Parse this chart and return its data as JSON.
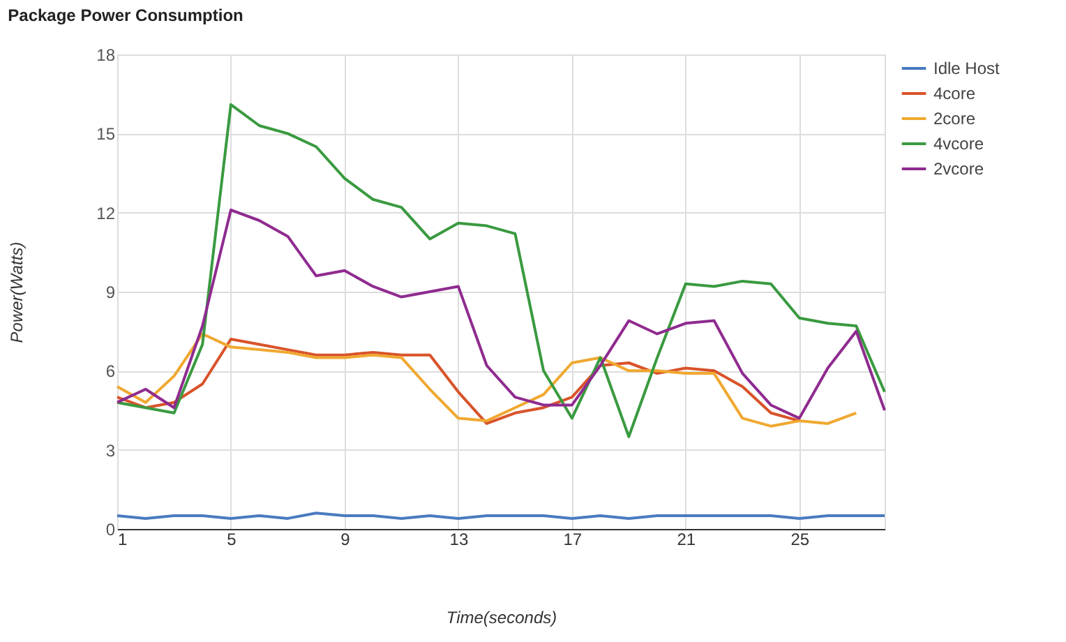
{
  "chart_data": {
    "type": "line",
    "title": "Package Power Consumption",
    "xlabel": "Time(seconds)",
    "ylabel": "Power(Watts)",
    "x": [
      1,
      2,
      3,
      4,
      5,
      6,
      7,
      8,
      9,
      10,
      11,
      12,
      13,
      14,
      15,
      16,
      17,
      18,
      19,
      20,
      21,
      22,
      23,
      24,
      25,
      26,
      27,
      28
    ],
    "xlim": [
      1,
      28
    ],
    "xticks": [
      1,
      5,
      9,
      13,
      17,
      21,
      25
    ],
    "ylim": [
      0,
      18
    ],
    "yticks": [
      0,
      3,
      6,
      9,
      12,
      15,
      18
    ],
    "grid": true,
    "legend": "right",
    "marker": "none",
    "line_style": "solid",
    "series": [
      {
        "name": "Idle Host",
        "color": "#4a7ac0",
        "values": [
          0.5,
          0.4,
          0.5,
          0.5,
          0.4,
          0.5,
          0.4,
          0.6,
          0.5,
          0.5,
          0.4,
          0.5,
          0.4,
          0.5,
          0.5,
          0.5,
          0.4,
          0.5,
          0.4,
          0.5,
          0.5,
          0.5,
          0.5,
          0.5,
          0.4,
          0.5,
          0.5,
          0.5
        ]
      },
      {
        "name": "4core",
        "color": "#d9532a",
        "values": [
          5.0,
          4.6,
          4.8,
          5.5,
          7.2,
          7.0,
          6.8,
          6.6,
          6.6,
          6.7,
          6.6,
          6.6,
          5.2,
          4.0,
          4.4,
          4.6,
          5.0,
          6.2,
          6.3,
          5.9,
          6.1,
          6.0,
          5.4,
          4.4,
          4.1,
          null,
          null,
          null
        ]
      },
      {
        "name": "2core",
        "color": "#f0a830",
        "values": [
          5.4,
          4.8,
          5.8,
          7.4,
          6.9,
          6.8,
          6.7,
          6.5,
          6.5,
          6.6,
          6.5,
          5.3,
          4.2,
          4.1,
          4.6,
          5.1,
          6.3,
          6.5,
          6.0,
          6.0,
          5.9,
          5.9,
          4.2,
          3.9,
          4.1,
          4.0,
          4.4,
          null
        ]
      },
      {
        "name": "4vcore",
        "color": "#3a9a40",
        "values": [
          4.8,
          4.6,
          4.4,
          7.0,
          16.1,
          15.3,
          15.0,
          14.5,
          13.3,
          12.5,
          12.2,
          11.0,
          11.6,
          11.5,
          11.2,
          6.0,
          4.2,
          6.5,
          3.5,
          6.5,
          9.3,
          9.2,
          9.4,
          9.3,
          8.0,
          7.8,
          7.7,
          5.2
        ]
      },
      {
        "name": "2vcore",
        "color": "#8f2b8f",
        "values": [
          4.8,
          5.3,
          4.6,
          7.7,
          12.1,
          11.7,
          11.1,
          9.6,
          9.8,
          9.2,
          8.8,
          9.0,
          9.2,
          6.2,
          5.0,
          4.7,
          4.7,
          6.2,
          7.9,
          7.4,
          7.8,
          7.9,
          5.9,
          4.7,
          4.2,
          6.1,
          7.5,
          4.5
        ]
      }
    ]
  }
}
